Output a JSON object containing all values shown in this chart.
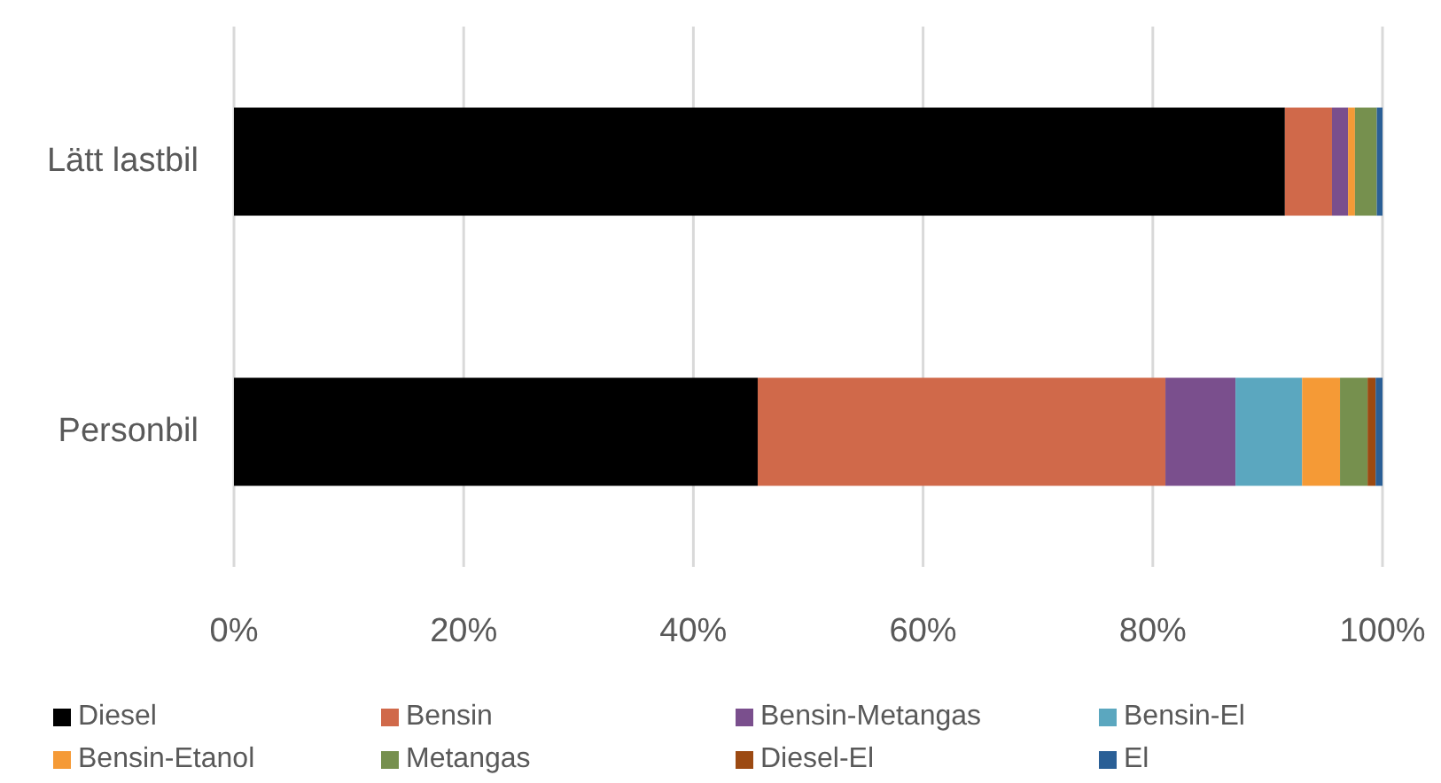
{
  "chart_data": {
    "type": "bar",
    "orientation": "horizontal",
    "stacked": true,
    "categories": [
      "Lätt lastbil",
      "Personbil"
    ],
    "series": [
      {
        "name": "Diesel",
        "color": "#000000",
        "values": [
          91.5,
          45.6
        ]
      },
      {
        "name": "Bensin",
        "color": "#d0694a",
        "values": [
          4.1,
          35.5
        ]
      },
      {
        "name": "Bensin-Metangas",
        "color": "#7a4f8d",
        "values": [
          1.4,
          6.1
        ]
      },
      {
        "name": "Bensin-El",
        "color": "#5ba7bf",
        "values": [
          0,
          5.8
        ]
      },
      {
        "name": "Bensin-Etanol",
        "color": "#f59a36",
        "values": [
          0.6,
          3.3
        ]
      },
      {
        "name": "Metangas",
        "color": "#76904e",
        "values": [
          1.9,
          2.4
        ]
      },
      {
        "name": "Diesel-El",
        "color": "#9c4a12",
        "values": [
          0,
          0.7
        ]
      },
      {
        "name": "El",
        "color": "#2a5f96",
        "values": [
          0.5,
          0.6
        ]
      }
    ],
    "xlim": [
      0,
      100
    ],
    "xticks": [
      {
        "value": 0,
        "label": "0%"
      },
      {
        "value": 20,
        "label": "20%"
      },
      {
        "value": 40,
        "label": "40%"
      },
      {
        "value": 60,
        "label": "60%"
      },
      {
        "value": 80,
        "label": "80%"
      },
      {
        "value": 100,
        "label": "100%"
      }
    ],
    "grid": "x",
    "legend": "bottom"
  }
}
